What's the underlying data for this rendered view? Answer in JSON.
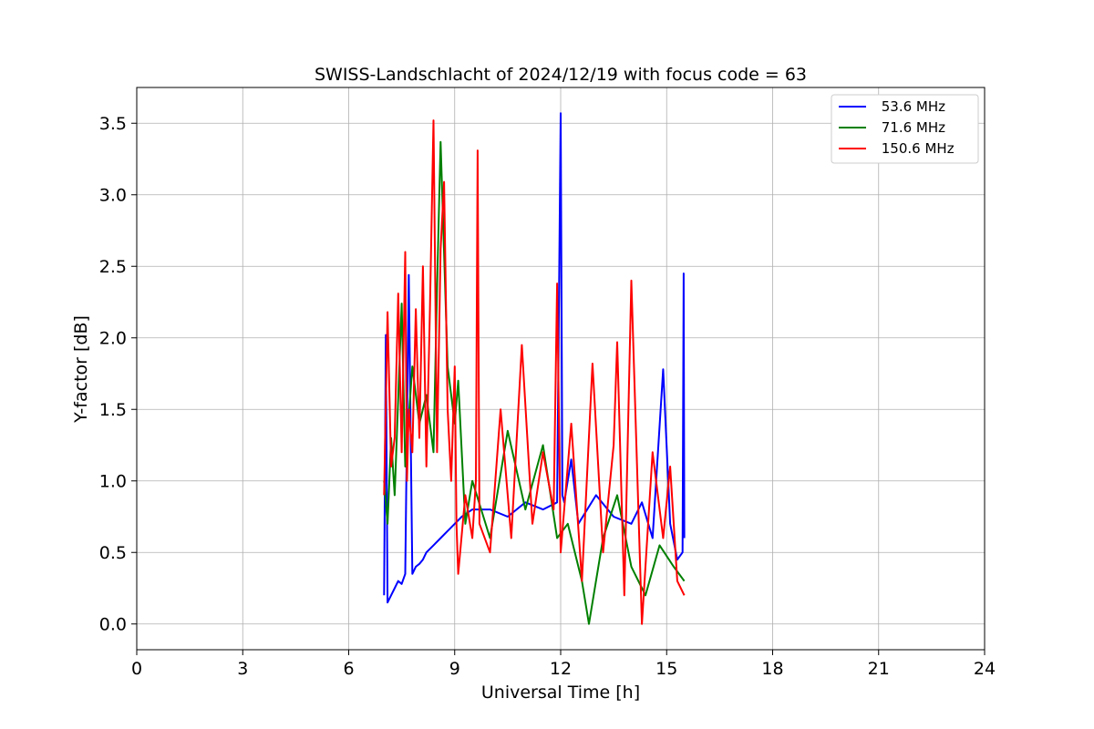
{
  "chart_data": {
    "type": "line",
    "title": "SWISS-Landschlacht of 2024/12/19 with focus code = 63",
    "xlabel": "Universal Time [h]",
    "ylabel": "Y-factor [dB]",
    "xlim": [
      0,
      24
    ],
    "ylim": [
      -0.18,
      3.75
    ],
    "xticks": [
      0,
      3,
      6,
      9,
      12,
      15,
      18,
      21,
      24
    ],
    "yticks": [
      0.0,
      0.5,
      1.0,
      1.5,
      2.0,
      2.5,
      3.0,
      3.5
    ],
    "xtick_labels": [
      "0",
      "3",
      "6",
      "9",
      "12",
      "15",
      "18",
      "21",
      "24"
    ],
    "ytick_labels": [
      "0.0",
      "0.5",
      "1.0",
      "1.5",
      "2.0",
      "2.5",
      "3.0",
      "3.5"
    ],
    "grid": true,
    "legend_position": "top-right",
    "series": [
      {
        "name": " 53.6 MHz",
        "color": "#0000ff",
        "x": [
          7.0,
          7.05,
          7.1,
          7.2,
          7.3,
          7.4,
          7.5,
          7.6,
          7.7,
          7.8,
          7.9,
          8.0,
          8.1,
          8.2,
          8.4,
          8.6,
          8.8,
          9.0,
          9.2,
          9.5,
          10.0,
          10.5,
          11.0,
          11.5,
          11.9,
          12.0,
          12.05,
          12.1,
          12.3,
          12.5,
          13.0,
          13.5,
          14.0,
          14.3,
          14.6,
          14.9,
          15.1,
          15.3,
          15.45,
          15.48,
          15.5
        ],
        "y": [
          0.2,
          2.02,
          0.15,
          0.2,
          0.25,
          0.3,
          0.28,
          0.35,
          2.44,
          0.35,
          0.4,
          0.42,
          0.45,
          0.5,
          0.55,
          0.6,
          0.65,
          0.7,
          0.75,
          0.8,
          0.8,
          0.75,
          0.85,
          0.8,
          0.85,
          3.57,
          0.9,
          0.85,
          1.15,
          0.7,
          0.9,
          0.75,
          0.7,
          0.85,
          0.6,
          1.78,
          0.7,
          0.45,
          0.5,
          2.45,
          0.6
        ]
      },
      {
        "name": " 71.6 MHz",
        "color": "#008000",
        "x": [
          7.0,
          7.1,
          7.2,
          7.3,
          7.5,
          7.6,
          7.8,
          8.0,
          8.2,
          8.4,
          8.5,
          8.6,
          8.8,
          9.0,
          9.1,
          9.3,
          9.5,
          10.0,
          10.5,
          11.0,
          11.5,
          11.9,
          12.2,
          12.6,
          12.8,
          13.2,
          13.6,
          14.0,
          14.4,
          14.8,
          15.2,
          15.5
        ],
        "y": [
          1.0,
          0.7,
          1.3,
          0.9,
          2.24,
          1.1,
          1.8,
          1.4,
          1.6,
          1.2,
          2.35,
          3.37,
          1.8,
          1.4,
          1.7,
          0.7,
          1.0,
          0.6,
          1.35,
          0.8,
          1.25,
          0.6,
          0.7,
          0.3,
          0.0,
          0.6,
          0.9,
          0.4,
          0.2,
          0.55,
          0.4,
          0.3
        ]
      },
      {
        "name": " 150.6 MHz",
        "color": "#ff0000",
        "x": [
          7.0,
          7.1,
          7.2,
          7.3,
          7.4,
          7.5,
          7.6,
          7.65,
          7.7,
          7.8,
          7.9,
          8.0,
          8.1,
          8.2,
          8.3,
          8.4,
          8.5,
          8.6,
          8.7,
          8.8,
          8.9,
          9.0,
          9.05,
          9.1,
          9.3,
          9.5,
          9.6,
          9.65,
          9.7,
          10.0,
          10.3,
          10.6,
          10.9,
          11.2,
          11.5,
          11.8,
          11.9,
          12.0,
          12.3,
          12.6,
          12.9,
          13.2,
          13.5,
          13.6,
          13.8,
          14.0,
          14.3,
          14.6,
          14.9,
          15.1,
          15.3,
          15.5
        ],
        "y": [
          0.9,
          2.18,
          1.1,
          1.3,
          2.31,
          1.2,
          2.6,
          1.0,
          1.5,
          1.2,
          2.2,
          1.3,
          2.5,
          1.1,
          2.2,
          3.52,
          1.2,
          2.62,
          3.09,
          1.5,
          1.0,
          1.8,
          0.7,
          0.35,
          0.9,
          0.6,
          1.0,
          3.31,
          0.7,
          0.5,
          1.5,
          0.6,
          1.95,
          0.7,
          1.2,
          0.8,
          2.38,
          0.5,
          1.4,
          0.3,
          1.82,
          0.5,
          1.25,
          1.97,
          0.2,
          2.4,
          0.0,
          1.2,
          0.6,
          1.1,
          0.3,
          0.2
        ]
      }
    ]
  }
}
